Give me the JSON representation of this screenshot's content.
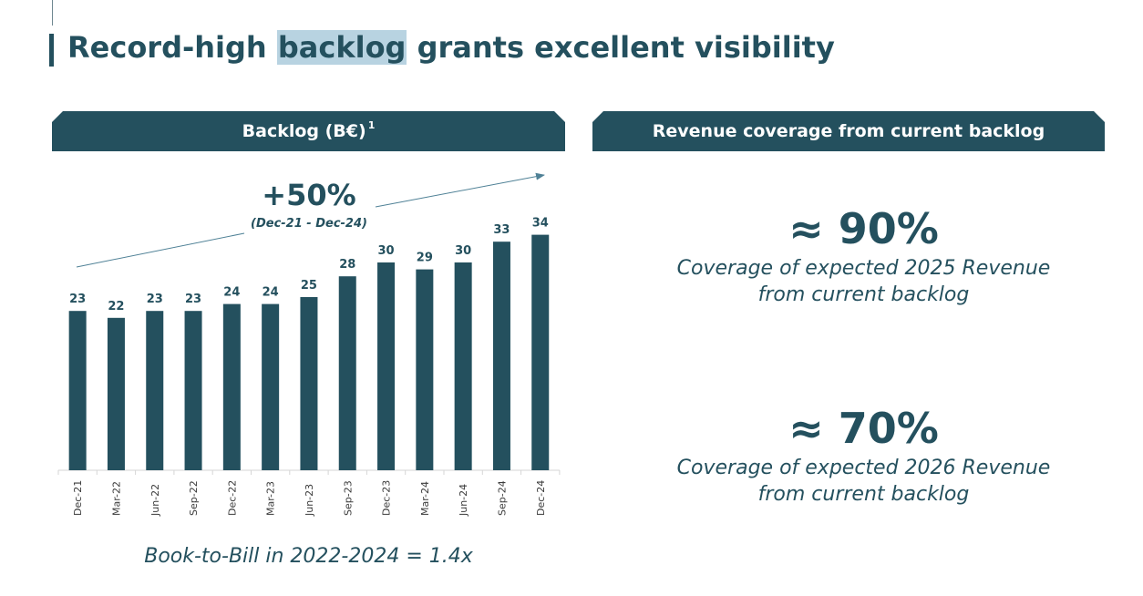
{
  "header": {
    "title_pre": "Record-high ",
    "title_highlight": "backlog",
    "title_post": " grants excellent visibility"
  },
  "left_panel": {
    "banner": "Backlog (B€)",
    "banner_sup": "1",
    "book_to_bill": "Book-to-Bill in 2022-2024 = 1.4x"
  },
  "right_panel": {
    "banner": "Revenue coverage from current backlog",
    "items": [
      {
        "pct": "≈ 90%",
        "line1": "Coverage of expected 2025 Revenue",
        "line2": "from current backlog"
      },
      {
        "pct": "≈ 70%",
        "line1": "Coverage of expected 2026 Revenue",
        "line2": "from current backlog"
      }
    ]
  },
  "chart_data": {
    "type": "bar",
    "title": "Backlog (B€)",
    "categories": [
      "Dec-21",
      "Mar-22",
      "Jun-22",
      "Sep-22",
      "Dec-22",
      "Mar-23",
      "Jun-23",
      "Sep-23",
      "Dec-23",
      "Mar-24",
      "Jun-24",
      "Sep-24",
      "Dec-24"
    ],
    "values": [
      23,
      22,
      23,
      23,
      24,
      24,
      25,
      28,
      30,
      29,
      30,
      33,
      34
    ],
    "ylim": [
      0,
      35
    ],
    "annotation": {
      "value": "+50%",
      "period": "(Dec-21 - Dec-24)"
    },
    "bar_color": "#24505e"
  }
}
